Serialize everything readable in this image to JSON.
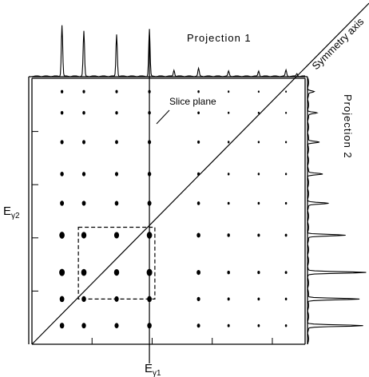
{
  "labels": {
    "projection1": "Projection 1",
    "projection2": "Projection 2",
    "symmetry_axis": "Symmetry axis",
    "slice_plane": "Slice plane",
    "x_axis_base": "E",
    "x_axis_sub": "γ1",
    "y_axis_base": "E",
    "y_axis_sub": "γ2"
  },
  "chart_data": {
    "type": "scatter",
    "note_from_image": "gamma-gamma coincidence matrix with projections",
    "x_label": "Eγ1",
    "y_label": "Eγ2",
    "x_range": [
      0,
      1
    ],
    "y_range": [
      0,
      1
    ],
    "peak_positions_x": [
      0.11,
      0.19,
      0.31,
      0.43,
      0.61,
      0.72,
      0.83,
      0.93
    ],
    "peak_positions_y": [
      0.07,
      0.17,
      0.27,
      0.41,
      0.53,
      0.64,
      0.76,
      0.87,
      0.95
    ],
    "peak_strength": [
      1.0,
      0.95,
      0.9,
      1.0,
      0.6,
      0.35,
      0.3,
      0.25
    ],
    "peak_strength_y": [
      0.7,
      0.75,
      0.95,
      0.9,
      0.6,
      0.5,
      0.45,
      0.35,
      0.3
    ],
    "slice_at_x": 0.43,
    "gate_box": {
      "x": [
        0.17,
        0.45
      ],
      "y": [
        0.17,
        0.44
      ]
    },
    "projection1_peaks": [
      {
        "x": 0.11,
        "h": 1.0
      },
      {
        "x": 0.19,
        "h": 0.88
      },
      {
        "x": 0.31,
        "h": 0.82
      },
      {
        "x": 0.43,
        "h": 0.92
      },
      {
        "x": 0.52,
        "h": 0.12
      },
      {
        "x": 0.61,
        "h": 0.15
      },
      {
        "x": 0.72,
        "h": 0.1
      },
      {
        "x": 0.83,
        "h": 0.1
      },
      {
        "x": 0.93,
        "h": 0.12
      },
      {
        "x": 0.97,
        "h": 0.05
      }
    ],
    "projection2_peaks": [
      {
        "y": 0.07,
        "h": 0.95
      },
      {
        "y": 0.17,
        "h": 0.9
      },
      {
        "y": 0.27,
        "h": 1.0
      },
      {
        "y": 0.41,
        "h": 0.65
      },
      {
        "y": 0.53,
        "h": 0.35
      },
      {
        "y": 0.64,
        "h": 0.25
      },
      {
        "y": 0.76,
        "h": 0.2
      },
      {
        "y": 0.87,
        "h": 0.15
      },
      {
        "y": 0.95,
        "h": 0.1
      }
    ],
    "grid": false
  }
}
